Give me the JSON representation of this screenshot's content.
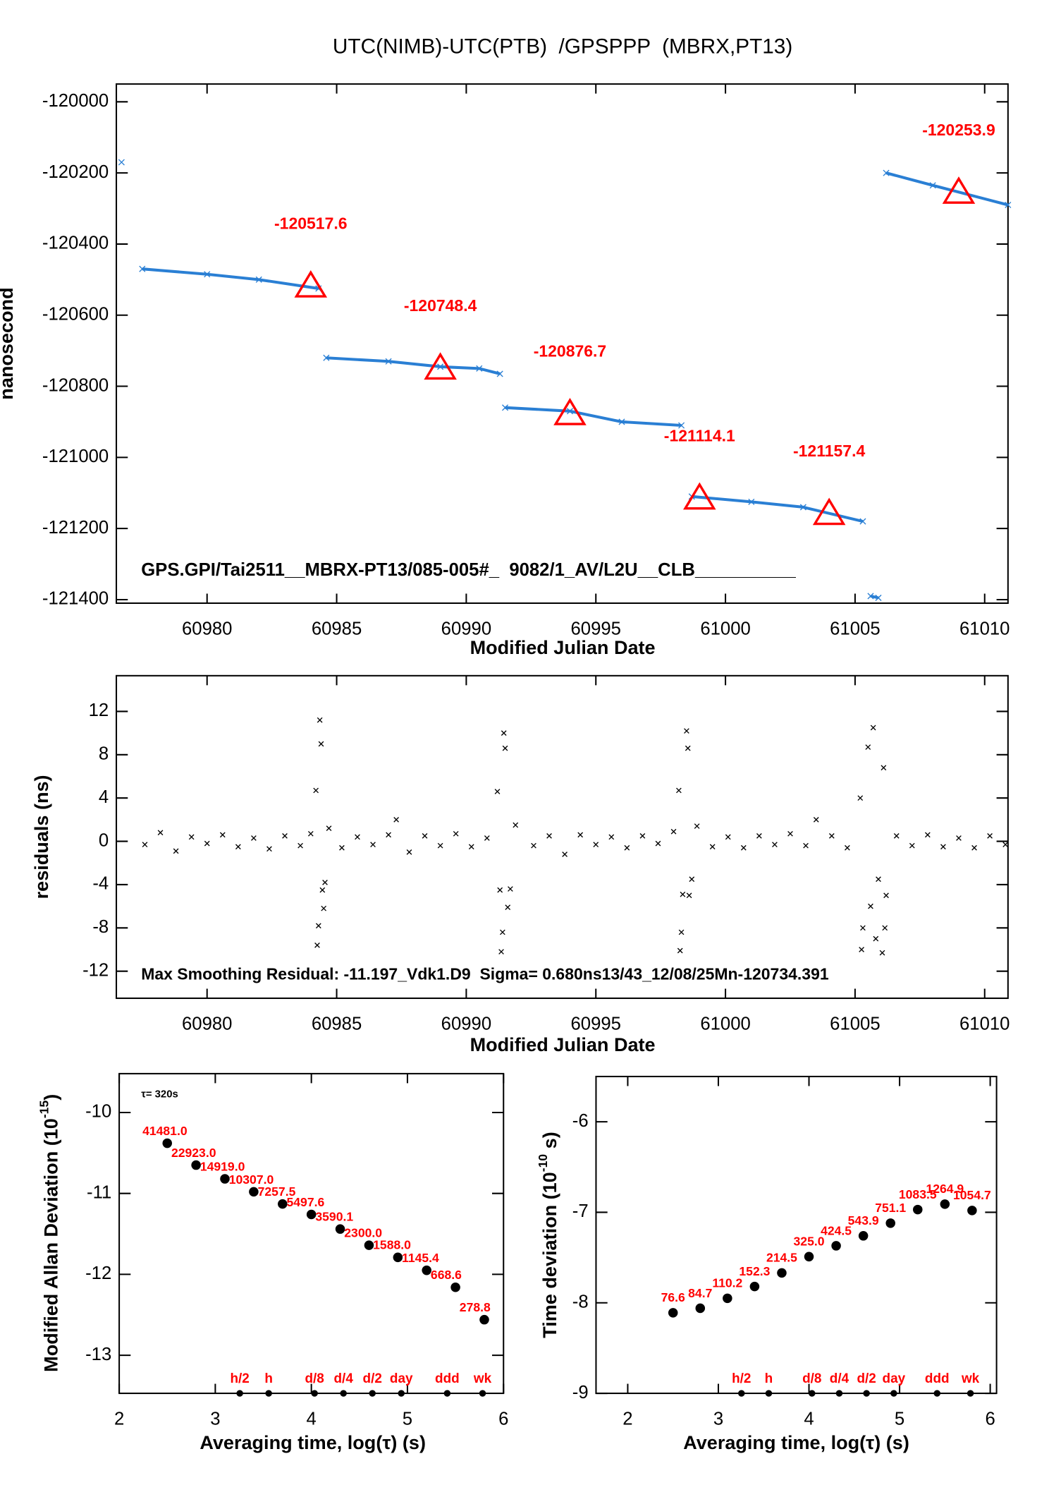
{
  "chart_data": [
    {
      "type": "line",
      "title": "UTC(NIMB)-UTC(PTB)  /GPSPPP  (MBRX,PT13)",
      "xlabel": "Modified Julian Date",
      "ylabel": "nanosecond",
      "annotation": "GPS.GPI/Tai2511__MBRX-PT13/085-005#_  9082/1_AV/L2U__CLB__________",
      "xlim": [
        60976.5,
        61010.9
      ],
      "ylim": [
        -121410,
        -119950
      ],
      "xticks": [
        60980,
        60985,
        60990,
        60995,
        61000,
        61005,
        61010
      ],
      "yticks": [
        -121400,
        -121200,
        -121000,
        -120800,
        -120600,
        -120400,
        -120200,
        -120000
      ],
      "series": [
        {
          "color": "#2a7fd4",
          "marker": "x",
          "x": [
            60976.7,
            60976.8,
            60977.5,
            60980,
            60982,
            60984.3,
            60984.4,
            60984.6,
            60987,
            60989,
            60990.5,
            60991.3,
            60991.4,
            60991.5,
            60994,
            60996,
            60998.3,
            60998.5,
            60998.7,
            61001,
            61003,
            61005.3,
            61005.4,
            61005.6,
            61005.9,
            61006,
            61006.2,
            61008,
            61010.9
          ],
          "values": [
            -120170,
            null,
            -120470,
            -120485,
            -120500,
            -120525,
            null,
            -120720,
            -120730,
            -120745,
            -120750,
            -120765,
            null,
            -120860,
            -120870,
            -120900,
            -120910,
            null,
            -121110,
            -121125,
            -121140,
            -121180,
            null,
            -121390,
            -121395,
            null,
            -120200,
            -120235,
            -120290
          ]
        },
        {
          "color": "#ff0000",
          "marker": "triangle",
          "x": [
            60984,
            60989,
            60994,
            60999,
            61004,
            61009
          ],
          "values": [
            -120517.6,
            -120748.4,
            -120876.7,
            -121114.1,
            -121157.4,
            -120253.9
          ]
        }
      ]
    },
    {
      "type": "scatter",
      "xlabel": "Modified Julian Date",
      "ylabel": "residuals (ns)",
      "annotation": "Max Smoothing Residual: -11.197_Vdk1.D9  Sigma= 0.680ns13/43_12/08/25Mn-120734.391",
      "xlim": [
        60976.5,
        61010.9
      ],
      "ylim": [
        -14.5,
        15.3
      ],
      "xticks": [
        60980,
        60985,
        60990,
        60995,
        61000,
        61005,
        61010
      ],
      "yticks": [
        -12,
        -8,
        -4,
        0,
        4,
        8,
        12
      ],
      "series": [
        {
          "color": "#000000",
          "marker": "x",
          "x": [
            60977.6,
            60978.2,
            60978.8,
            60979.4,
            60980,
            60980.6,
            60981.2,
            60981.8,
            60982.4,
            60983,
            60983.6,
            60984,
            60984.2,
            60984.25,
            60984.3,
            60984.35,
            60984.4,
            60984.45,
            60984.5,
            60984.55,
            60984.7,
            60985.2,
            60985.8,
            60986.4,
            60987,
            60987.3,
            60987.8,
            60988.4,
            60989,
            60989.6,
            60990.2,
            60990.8,
            60991.2,
            60991.3,
            60991.35,
            60991.4,
            60991.45,
            60991.5,
            60991.6,
            60991.7,
            60991.9,
            60992.6,
            60993.2,
            60993.8,
            60994.4,
            60995,
            60995.6,
            60996.2,
            60996.8,
            60997.4,
            60998,
            60998.2,
            60998.25,
            60998.3,
            60998.35,
            60998.5,
            60998.55,
            60998.6,
            60998.7,
            60998.9,
            60999.5,
            61000.1,
            61000.7,
            61001.3,
            61001.9,
            61002.5,
            61003.1,
            61003.5,
            61004.1,
            61004.7,
            61005.2,
            61005.25,
            61005.3,
            61005.5,
            61005.6,
            61005.7,
            61005.8,
            61005.9,
            61006.05,
            61006.1,
            61006.15,
            61006.2,
            61006.6,
            61007.2,
            61007.8,
            61008.4,
            61009,
            61009.6,
            61010.2,
            61010.8
          ],
          "values": [
            -0.3,
            0.8,
            -0.9,
            0.4,
            -0.2,
            0.6,
            -0.5,
            0.3,
            -0.7,
            0.5,
            -0.4,
            0.7,
            4.7,
            -9.6,
            -7.8,
            11.2,
            9.0,
            -4.5,
            -6.2,
            -3.8,
            1.2,
            -0.6,
            0.4,
            -0.3,
            0.6,
            2.0,
            -1.0,
            0.5,
            -0.4,
            0.7,
            -0.5,
            0.3,
            4.6,
            -4.5,
            -10.2,
            -8.4,
            10.0,
            8.6,
            -6.1,
            -4.4,
            1.5,
            -0.4,
            0.5,
            -1.2,
            0.6,
            -0.3,
            0.4,
            -0.6,
            0.5,
            -0.2,
            0.9,
            4.7,
            -10.1,
            -8.4,
            -4.9,
            10.2,
            8.6,
            -5.0,
            -3.5,
            1.4,
            -0.5,
            0.4,
            -0.6,
            0.5,
            -0.3,
            0.7,
            -0.4,
            2.0,
            0.5,
            -0.6,
            4.0,
            -10.0,
            -8.0,
            8.7,
            -6.0,
            10.5,
            -9.0,
            -3.5,
            -10.3,
            6.8,
            -8.0,
            -5.0,
            0.5,
            -0.4,
            0.6,
            -0.5,
            0.3,
            -0.6,
            0.5,
            -0.3
          ]
        }
      ]
    },
    {
      "type": "scatter",
      "xlabel": "Averaging time, log(τ) (s)",
      "ylabel": {
        "text": "Modified Allan Deviation (10",
        "sup": "-15",
        "tail": ")"
      },
      "annotation": "τ= 320s",
      "xlim": [
        2,
        6
      ],
      "ylim": [
        -13.47,
        -9.52
      ],
      "xticks": [
        2,
        3,
        4,
        5,
        6
      ],
      "yticks": [
        -13,
        -12,
        -11,
        -10
      ],
      "series": [
        {
          "color": "#000000",
          "marker": "dot",
          "label_color": "#ff0000",
          "label_style": "right",
          "x": [
            2.5,
            2.8,
            3.1,
            3.4,
            3.7,
            4.0,
            4.3,
            4.6,
            4.9,
            5.2,
            5.5,
            5.8
          ],
          "values": [
            -10.38,
            -10.65,
            -10.82,
            -10.98,
            -11.13,
            -11.26,
            -11.44,
            -11.64,
            -11.79,
            -11.95,
            -12.16,
            -12.56
          ],
          "point_labels": [
            "41481.0",
            "22923.0",
            "14919.0",
            "10307.0",
            "7257.5",
            "5497.6",
            "3590.1",
            "2300.0",
            "1588.0",
            "1145.4",
            "668.6",
            "278.8"
          ]
        }
      ],
      "interval_marks": {
        "x": [
          3.255,
          3.556,
          4.033,
          4.334,
          4.635,
          4.936,
          5.414,
          5.782
        ],
        "labels": [
          "h/2",
          "h",
          "d/8",
          "d/4",
          "d/2",
          "day",
          "ddd",
          "wk"
        ]
      }
    },
    {
      "type": "scatter",
      "xlabel": "Averaging time, log(τ) (s)",
      "ylabel": {
        "text": "Time deviation (10",
        "sup": "-10",
        "tail": " s)"
      },
      "xlim": [
        1.65,
        6.07
      ],
      "ylim": [
        -9,
        -5.5
      ],
      "xticks": [
        2,
        3,
        4,
        5,
        6
      ],
      "yticks": [
        -9,
        -8,
        -7,
        -6
      ],
      "series": [
        {
          "color": "#000000",
          "marker": "dot",
          "label_color": "#ff0000",
          "label_style": "above",
          "x": [
            2.5,
            2.8,
            3.1,
            3.4,
            3.7,
            4.0,
            4.3,
            4.6,
            4.9,
            5.2,
            5.5,
            5.8
          ],
          "values": [
            -8.11,
            -8.06,
            -7.95,
            -7.82,
            -7.67,
            -7.49,
            -7.37,
            -7.26,
            -7.12,
            -6.97,
            -6.91,
            -6.98
          ],
          "point_labels": [
            "76.6",
            "84.7",
            "110.2",
            "152.3",
            "214.5",
            "325.0",
            "424.5",
            "543.9",
            "751.1",
            "1083.5",
            "1264.9",
            "1054.7"
          ]
        }
      ],
      "interval_marks": {
        "x": [
          3.255,
          3.556,
          4.033,
          4.334,
          4.635,
          4.936,
          5.414,
          5.782
        ],
        "labels": [
          "h/2",
          "h",
          "d/8",
          "d/4",
          "d/2",
          "day",
          "ddd",
          "wk"
        ]
      }
    }
  ]
}
